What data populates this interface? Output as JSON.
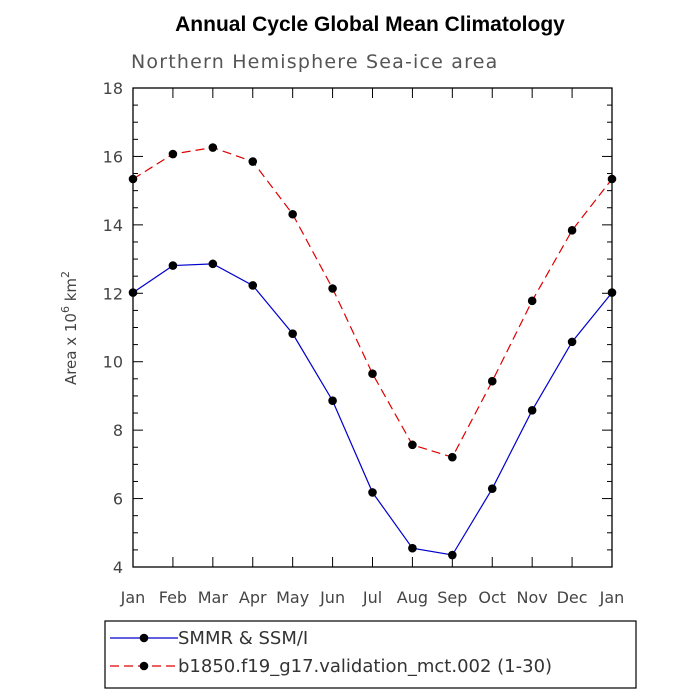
{
  "chart_data": {
    "type": "line",
    "title": "Annual Cycle Global Mean Climatology",
    "subtitle": "Northern Hemisphere Sea-ice area",
    "ylabel_main": "Area x 10",
    "ylabel_exp": "6",
    "ylabel_unit": " km",
    "ylabel_unit_exp": "2",
    "categories": [
      "Jan",
      "Feb",
      "Mar",
      "Apr",
      "May",
      "Jun",
      "Jul",
      "Aug",
      "Sep",
      "Oct",
      "Nov",
      "Dec",
      "Jan"
    ],
    "ylim": [
      4,
      18
    ],
    "yticks": [
      4,
      6,
      8,
      10,
      12,
      14,
      16,
      18
    ],
    "series": [
      {
        "name": "SMMR & SSM/I",
        "color": "#0000cc",
        "dash": "solid",
        "values": [
          12.02,
          12.81,
          12.86,
          12.23,
          10.82,
          8.86,
          6.18,
          4.55,
          4.35,
          6.29,
          8.58,
          10.58,
          12.02
        ]
      },
      {
        "name": "b1850.f19_g17.validation_mct.002 (1-30)",
        "color": "#e00000",
        "dash": "dashed",
        "values": [
          15.34,
          16.07,
          16.26,
          15.85,
          14.31,
          12.14,
          9.65,
          7.57,
          7.21,
          9.43,
          11.78,
          13.84,
          15.34
        ]
      }
    ]
  }
}
